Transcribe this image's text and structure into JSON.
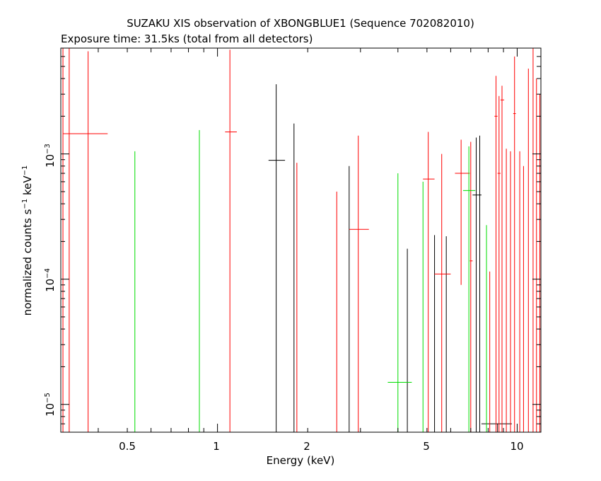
{
  "chart_data": {
    "type": "scatter",
    "title": "SUZAKU XIS observation of XBONGBLUE1 (Sequence 702082010)",
    "subtitle": "Exposure time: 31.5ks (total from all detectors)",
    "xlabel": "Energy (keV)",
    "ylabel": "normalized counts s-1 keV-1",
    "xscale": "log",
    "yscale": "log",
    "xlim": [
      0.3,
      12.0
    ],
    "ylim": [
      6e-06,
      0.007
    ],
    "grid": false,
    "x_ticks": [
      "0.5",
      "1",
      "2",
      "5",
      "10"
    ],
    "y_ticks": [
      "10-5",
      "10-4",
      "10-3"
    ],
    "series": [
      {
        "color": "#000000",
        "points": [
          {
            "x": 1.57,
            "xlo": 1.48,
            "xhi": 1.68,
            "y": 0.00089,
            "ylo": 6e-06,
            "yhi": 0.0036
          },
          {
            "x": 1.8,
            "xlo": 1.8,
            "xhi": 1.8,
            "y": 0.0004,
            "ylo": 6e-06,
            "yhi": 0.00175
          },
          {
            "x": 2.75,
            "xlo": 2.75,
            "xhi": 2.75,
            "y": 0.0002,
            "ylo": 6e-06,
            "yhi": 0.0008
          },
          {
            "x": 4.3,
            "xlo": 4.3,
            "xhi": 4.3,
            "y": 5e-05,
            "ylo": 6e-06,
            "yhi": 0.000175
          },
          {
            "x": 5.3,
            "xlo": 5.3,
            "xhi": 5.3,
            "y": 6e-05,
            "ylo": 6e-06,
            "yhi": 0.000225
          },
          {
            "x": 5.8,
            "xlo": 5.8,
            "xhi": 5.8,
            "y": 1.5e-05,
            "ylo": 6e-06,
            "yhi": 0.00022
          },
          {
            "x": 7.3,
            "xlo": 7.1,
            "xhi": 7.6,
            "y": 0.00047,
            "ylo": 6e-06,
            "yhi": 0.00135
          },
          {
            "x": 7.5,
            "xlo": 7.5,
            "xhi": 7.5,
            "y": 0.00048,
            "ylo": 6e-06,
            "yhi": 0.0014
          },
          {
            "x": 8.6,
            "xlo": 7.6,
            "xhi": 9.6,
            "y": 7e-06,
            "ylo": 6e-06,
            "yhi": 7e-06
          }
        ]
      },
      {
        "color": "#ff0000",
        "points": [
          {
            "x": 0.305,
            "xlo": 0.305,
            "xhi": 0.305,
            "y": 0.003,
            "ylo": 6e-06,
            "yhi": 0.007
          },
          {
            "x": 0.32,
            "xlo": 0.32,
            "xhi": 0.32,
            "y": 0.003,
            "ylo": 6e-06,
            "yhi": 0.007
          },
          {
            "x": 0.37,
            "xlo": 0.305,
            "xhi": 0.43,
            "y": 0.00145,
            "ylo": 6e-06,
            "yhi": 0.0066
          },
          {
            "x": 1.1,
            "xlo": 1.06,
            "xhi": 1.16,
            "y": 0.0015,
            "ylo": 6e-06,
            "yhi": 0.0068
          },
          {
            "x": 1.84,
            "xlo": 1.84,
            "xhi": 1.84,
            "y": 0.0002,
            "ylo": 6e-06,
            "yhi": 0.00085
          },
          {
            "x": 2.5,
            "xlo": 2.5,
            "xhi": 2.5,
            "y": 0.00012,
            "ylo": 6e-06,
            "yhi": 0.0005
          },
          {
            "x": 2.95,
            "xlo": 2.75,
            "xhi": 3.2,
            "y": 0.00025,
            "ylo": 6e-06,
            "yhi": 0.0014
          },
          {
            "x": 5.05,
            "xlo": 4.85,
            "xhi": 5.3,
            "y": 0.00063,
            "ylo": 6e-06,
            "yhi": 0.0015
          },
          {
            "x": 5.6,
            "xlo": 5.3,
            "xhi": 6.0,
            "y": 0.00011,
            "ylo": 6e-06,
            "yhi": 0.001
          },
          {
            "x": 6.5,
            "xlo": 6.2,
            "xhi": 6.95,
            "y": 0.0007,
            "ylo": 9e-05,
            "yhi": 0.0013
          },
          {
            "x": 7.0,
            "xlo": 6.95,
            "xhi": 7.1,
            "y": 0.00014,
            "ylo": 6e-06,
            "yhi": 0.00125
          },
          {
            "x": 8.1,
            "xlo": 8.1,
            "xhi": 8.1,
            "y": 3e-05,
            "ylo": 6e-06,
            "yhi": 0.000115
          },
          {
            "x": 8.5,
            "xlo": 8.4,
            "xhi": 8.6,
            "y": 0.002,
            "ylo": 6e-06,
            "yhi": 0.0042
          },
          {
            "x": 8.7,
            "xlo": 8.6,
            "xhi": 8.8,
            "y": 0.0007,
            "ylo": 6e-06,
            "yhi": 0.0029
          },
          {
            "x": 8.9,
            "xlo": 8.8,
            "xhi": 9.05,
            "y": 0.0027,
            "ylo": 6e-06,
            "yhi": 0.0035
          },
          {
            "x": 9.2,
            "xlo": 9.2,
            "xhi": 9.2,
            "y": 0.0003,
            "ylo": 6e-06,
            "yhi": 0.0011
          },
          {
            "x": 9.5,
            "xlo": 9.5,
            "xhi": 9.5,
            "y": 0.0003,
            "ylo": 6e-06,
            "yhi": 0.00105
          },
          {
            "x": 9.8,
            "xlo": 9.7,
            "xhi": 9.9,
            "y": 0.0021,
            "ylo": 6e-06,
            "yhi": 0.006
          },
          {
            "x": 10.2,
            "xlo": 10.2,
            "xhi": 10.2,
            "y": 0.0003,
            "ylo": 6e-06,
            "yhi": 0.00105
          },
          {
            "x": 10.5,
            "xlo": 10.5,
            "xhi": 10.5,
            "y": 0.0002,
            "ylo": 6e-06,
            "yhi": 0.0008
          },
          {
            "x": 10.9,
            "xlo": 10.9,
            "xhi": 10.9,
            "y": 0.001,
            "ylo": 6e-06,
            "yhi": 0.0048
          },
          {
            "x": 11.3,
            "xlo": 11.3,
            "xhi": 11.3,
            "y": 0.0015,
            "ylo": 6e-06,
            "yhi": 0.007
          },
          {
            "x": 11.6,
            "xlo": 11.6,
            "xhi": 11.6,
            "y": 0.0004,
            "ylo": 6e-06,
            "yhi": 0.004
          },
          {
            "x": 11.9,
            "xlo": 11.9,
            "xhi": 11.9,
            "y": 0.0008,
            "ylo": 6e-06,
            "yhi": 0.003
          }
        ]
      },
      {
        "color": "#00dd00",
        "points": [
          {
            "x": 0.53,
            "xlo": 0.53,
            "xhi": 0.53,
            "y": 0.0003,
            "ylo": 6e-06,
            "yhi": 0.00105
          },
          {
            "x": 0.87,
            "xlo": 0.87,
            "xhi": 0.87,
            "y": 0.0004,
            "ylo": 6e-06,
            "yhi": 0.00155
          },
          {
            "x": 4.0,
            "xlo": 3.7,
            "xhi": 4.45,
            "y": 1.5e-05,
            "ylo": 6e-06,
            "yhi": 0.0007
          },
          {
            "x": 4.85,
            "xlo": 4.85,
            "xhi": 4.85,
            "y": 0.00015,
            "ylo": 6e-06,
            "yhi": 0.0006
          },
          {
            "x": 6.9,
            "xlo": 6.6,
            "xhi": 7.25,
            "y": 0.00051,
            "ylo": 6e-06,
            "yhi": 0.00115
          },
          {
            "x": 7.9,
            "xlo": 7.9,
            "xhi": 7.9,
            "y": 7e-05,
            "ylo": 6e-06,
            "yhi": 0.00027
          }
        ]
      }
    ]
  }
}
